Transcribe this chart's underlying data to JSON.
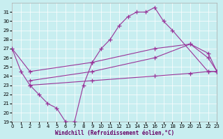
{
  "xlabel": "Windchill (Refroidissement éolien,°C)",
  "background_color": "#c8eef0",
  "line_color": "#993399",
  "xlim": [
    0,
    23
  ],
  "ylim": [
    19,
    32
  ],
  "yticks": [
    19,
    20,
    21,
    22,
    23,
    24,
    25,
    26,
    27,
    28,
    29,
    30,
    31
  ],
  "xticks": [
    0,
    1,
    2,
    3,
    4,
    5,
    6,
    7,
    8,
    9,
    10,
    11,
    12,
    13,
    14,
    15,
    16,
    17,
    18,
    19,
    20,
    21,
    22,
    23
  ],
  "series": [
    {
      "x": [
        0,
        1,
        2,
        3,
        4,
        5,
        6,
        7,
        8,
        9,
        10,
        11,
        12,
        13,
        14,
        15,
        16,
        17,
        18,
        22,
        23
      ],
      "y": [
        27,
        24.5,
        23,
        22,
        21,
        20.5,
        19.0,
        19.0,
        23,
        25.5,
        27,
        28,
        29.5,
        30.5,
        31.0,
        31.0,
        31.5,
        30.0,
        29.0,
        24.5,
        24.5
      ]
    },
    {
      "x": [
        0,
        2,
        9,
        16,
        20,
        22,
        23
      ],
      "y": [
        27,
        24.5,
        25.5,
        27.0,
        27.5,
        26.0,
        24.5
      ]
    },
    {
      "x": [
        2,
        9,
        16,
        20,
        22,
        23
      ],
      "y": [
        23.5,
        24.5,
        26.0,
        27.5,
        26.5,
        24.5
      ]
    },
    {
      "x": [
        2,
        9,
        16,
        20,
        22,
        23
      ],
      "y": [
        23.0,
        23.5,
        24.0,
        24.3,
        24.5,
        24.5
      ]
    }
  ]
}
